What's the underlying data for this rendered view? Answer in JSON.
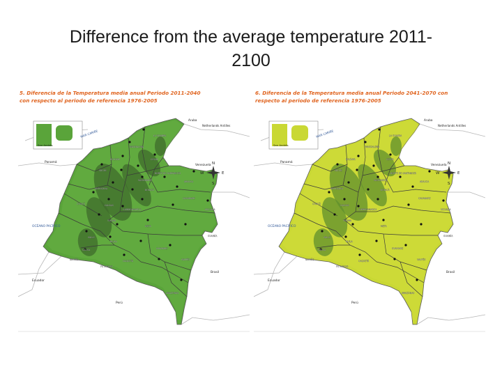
{
  "slide": {
    "title": "Difference from the average temperature 2011-\n2100"
  },
  "colors": {
    "heading_text": "#e0641f",
    "land_border": "#b5b5b5",
    "ocean": "#ffffff",
    "dept_line": "#3a3a3a",
    "city_marker": "#111111"
  },
  "maps": [
    {
      "heading": "5. Diferencia de la Temperatura media anual Periodo 2011-2040\ncon respecto al periodo de referencia 1976-2005",
      "fill_color": "#5aa43a",
      "fill_light": "#6fb84a",
      "mountain_color": "#3f6b2c",
      "inset_label": "San Andrés",
      "labels": {
        "caribbean": "MAR CARIBE",
        "pacific": "OCÉANO PACÍFICO",
        "aruba": "Aruba",
        "antilles": "Netherlands Antilles",
        "panama": "Panamá",
        "venezuela": "Venezuela",
        "ecuador": "Ecuador",
        "peru": "Perú",
        "brasil": "Brasil"
      },
      "compass": {
        "n": "N",
        "s": "S",
        "e": "E",
        "w": "W"
      },
      "departments": [
        "LA GUAJIRA",
        "MAGDALENA",
        "CESAR",
        "BOLÍVAR",
        "SUCRE",
        "NORTE DE SANTANDER",
        "ANTIOQUIA",
        "SANTANDER",
        "ARAUCA",
        "BOYACÁ",
        "CASANARE",
        "CHOCÓ",
        "CALDAS",
        "CUNDINAMARCA",
        "VICHADA",
        "TOLIMA",
        "META",
        "VALLE",
        "HUILA",
        "GUAINÍA",
        "CAUCA",
        "GUAVIARE",
        "NARIÑO",
        "CAQUETÁ",
        "VAUPÉS",
        "PUTUMAYO",
        "AMAZONAS"
      ]
    },
    {
      "heading": "6. Diferencia de la Temperatura media anual Periodo 2041-2070 con\nrespecto al periodo de referencia 1976-2005",
      "fill_color": "#c9d834",
      "fill_light": "#d4e040",
      "mountain_color": "#5f8f2e",
      "inset_label": "San Andrés",
      "labels": {
        "caribbean": "MAR CARIBE",
        "pacific": "OCÉANO PACÍFICO",
        "aruba": "Aruba",
        "antilles": "Netherlands Antilles",
        "panama": "Panamá",
        "venezuela": "Venezuela",
        "ecuador": "Ecuador",
        "peru": "Perú",
        "brasil": "Brasil"
      },
      "compass": {
        "n": "N",
        "s": "S",
        "e": "E",
        "w": "W"
      },
      "departments": [
        "LA GUAJIRA",
        "MAGDALENA",
        "CESAR",
        "BOLÍVAR",
        "SUCRE",
        "NORTE DE SANTANDER",
        "ANTIOQUIA",
        "SANTANDER",
        "ARAUCA",
        "BOYACÁ",
        "CASANARE",
        "CHOCÓ",
        "CALDAS",
        "CUNDINAMARCA",
        "VICHADA",
        "TOLIMA",
        "META",
        "VALLE",
        "HUILA",
        "GUAINÍA",
        "CAUCA",
        "GUAVIARE",
        "NARIÑO",
        "CAQUETÁ",
        "VAUPÉS",
        "PUTUMAYO",
        "AMAZONAS"
      ]
    }
  ]
}
